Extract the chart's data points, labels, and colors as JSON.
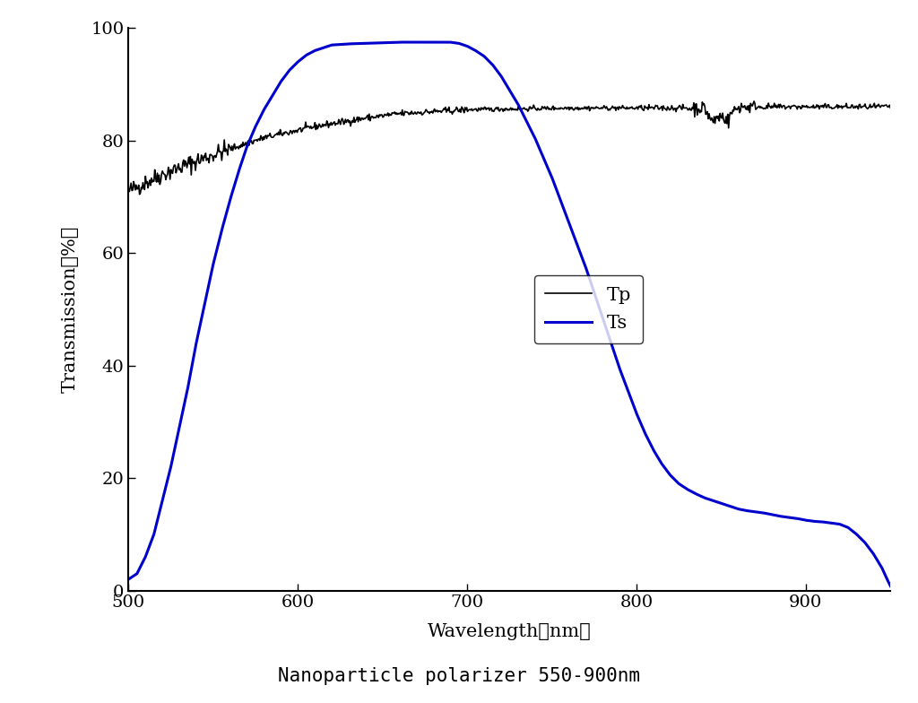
{
  "title": "Nanoparticle polarizer 550-900nm",
  "xlabel": "Wavelength（nm）",
  "ylabel": "Transmission（%）",
  "xlim": [
    500,
    950
  ],
  "ylim": [
    0,
    100
  ],
  "xticks": [
    500,
    600,
    700,
    800,
    900
  ],
  "yticks": [
    0,
    20,
    40,
    60,
    80,
    100
  ],
  "tp_color": "#000000",
  "ts_color": "#0000cc",
  "legend_labels": [
    "Tp",
    "Ts"
  ],
  "background_color": "#ffffff",
  "title_fontsize": 15,
  "axis_label_fontsize": 15,
  "tick_fontsize": 14,
  "legend_fontsize": 15
}
